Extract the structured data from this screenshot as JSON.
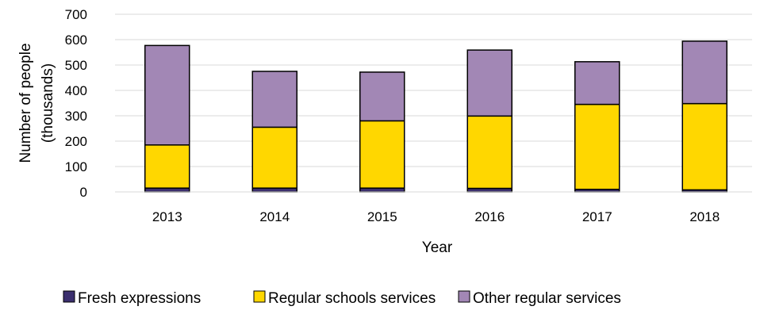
{
  "chart_data": {
    "type": "bar",
    "stacked": true,
    "title": "",
    "xlabel": "Year",
    "ylabel_lines": [
      "Number of people",
      "(thousands)"
    ],
    "ylim": [
      0,
      700
    ],
    "yticks": [
      0,
      100,
      200,
      300,
      400,
      500,
      600,
      700
    ],
    "grid": true,
    "legend_position": "bottom",
    "categories": [
      "2013",
      "2014",
      "2015",
      "2016",
      "2017",
      "2018"
    ],
    "series": [
      {
        "name": "Fresh expressions",
        "color": "#3b2f6e",
        "values": [
          15,
          15,
          15,
          14,
          10,
          8
        ]
      },
      {
        "name": "Regular schools services",
        "color": "#ffd700",
        "values": [
          170,
          240,
          265,
          285,
          335,
          340
        ]
      },
      {
        "name": "Other regular services",
        "color": "#a287b5",
        "values": [
          392,
          220,
          192,
          260,
          168,
          246
        ]
      }
    ]
  }
}
